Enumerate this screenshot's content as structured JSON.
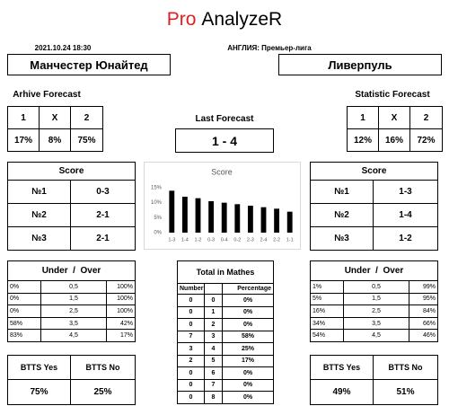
{
  "header": {
    "brand_prefix": "Pro",
    "brand": "AnalyzeR",
    "datetime": "2021.10.24 18:30",
    "league": "АНГЛИЯ: Премьер-лига"
  },
  "teams": {
    "home": "Манчестер Юнайтед",
    "away": "Ливерпуль"
  },
  "archive_forecast": {
    "title": "Arhive Forecast",
    "columns": [
      "1",
      "X",
      "2"
    ],
    "values": [
      "17%",
      "8%",
      "75%"
    ]
  },
  "statistic_forecast": {
    "title": "Statistic Forecast",
    "columns": [
      "1",
      "X",
      "2"
    ],
    "values": [
      "12%",
      "16%",
      "72%"
    ]
  },
  "last_forecast": {
    "title": "Last Forecast",
    "value": "1 - 4"
  },
  "score_home": {
    "title": "Score",
    "rows": [
      [
        "№1",
        "0-3"
      ],
      [
        "№2",
        "2-1"
      ],
      [
        "№3",
        "2-1"
      ]
    ]
  },
  "score_away": {
    "title": "Score",
    "rows": [
      [
        "№1",
        "1-3"
      ],
      [
        "№2",
        "1-4"
      ],
      [
        "№3",
        "1-2"
      ]
    ]
  },
  "chart_data": {
    "type": "bar",
    "title": "Score",
    "categories": [
      "1-3",
      "1-4",
      "1-2",
      "0-3",
      "0-4",
      "0-2",
      "2-3",
      "2-4",
      "2-2",
      "1-1"
    ],
    "values": [
      14,
      12,
      11.5,
      10.5,
      10,
      9.5,
      9,
      8.5,
      8,
      7
    ],
    "color": "#000000",
    "ylim": [
      0,
      15
    ],
    "yticks": [
      {
        "value": 0,
        "label": "0%"
      },
      {
        "value": 5,
        "label": "5%"
      },
      {
        "value": 10,
        "label": "10%"
      },
      {
        "value": 15,
        "label": "15%"
      }
    ],
    "grid": false
  },
  "under_over_home": {
    "title": "Under  /  Over",
    "rows": [
      [
        "0%",
        "0,5",
        "100%"
      ],
      [
        "0%",
        "1,5",
        "100%"
      ],
      [
        "0%",
        "2,5",
        "100%"
      ],
      [
        "58%",
        "3,5",
        "42%"
      ],
      [
        "83%",
        "4,5",
        "17%"
      ]
    ]
  },
  "under_over_away": {
    "title": "Under  /  Over",
    "rows": [
      [
        "1%",
        "0,5",
        "99%"
      ],
      [
        "5%",
        "1,5",
        "95%"
      ],
      [
        "16%",
        "2,5",
        "84%"
      ],
      [
        "34%",
        "3,5",
        "66%"
      ],
      [
        "54%",
        "4,5",
        "46%"
      ]
    ]
  },
  "total_matches": {
    "title": "Total in Mathes",
    "headers": {
      "number": "Number",
      "percentage": "Percentage"
    },
    "rows": [
      [
        "0",
        "0",
        "0%"
      ],
      [
        "0",
        "1",
        "0%"
      ],
      [
        "0",
        "2",
        "0%"
      ],
      [
        "7",
        "3",
        "58%"
      ],
      [
        "3",
        "4",
        "25%"
      ],
      [
        "2",
        "5",
        "17%"
      ],
      [
        "0",
        "6",
        "0%"
      ],
      [
        "0",
        "7",
        "0%"
      ],
      [
        "0",
        "8",
        "0%"
      ]
    ]
  },
  "btts_home": {
    "columns": [
      "BTTS Yes",
      "BTTS No"
    ],
    "values": [
      "75%",
      "25%"
    ]
  },
  "btts_away": {
    "columns": [
      "BTTS Yes",
      "BTTS No"
    ],
    "values": [
      "49%",
      "51%"
    ]
  }
}
